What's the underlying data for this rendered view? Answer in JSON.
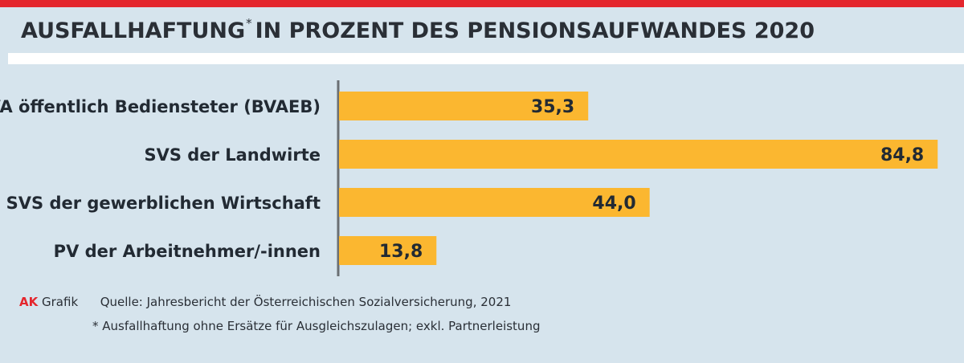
{
  "header": {
    "title_main": "AUSFALLHAFTUNG",
    "title_mark": "*",
    "title_rest": "IN PROZENT DES PENSIONSAUFWANDES 2020"
  },
  "colors": {
    "accent": "#e4262d",
    "bar": "#fbb730",
    "background": "#d6e4ed",
    "axis": "#6b6f73"
  },
  "chart_data": {
    "type": "bar",
    "orientation": "horizontal",
    "categories": [
      "VA öffentlich Bediensteter (BVAEB)",
      "SVS der Landwirte",
      "SVS der gewerblichen  Wirtschaft",
      "PV der Arbeitnehmer/-innen"
    ],
    "values": [
      35.3,
      84.8,
      44.0,
      13.8
    ],
    "value_labels": [
      "35,3",
      "84,8",
      "44,0",
      "13,8"
    ],
    "xlim": [
      0,
      85
    ],
    "grid": false,
    "legend": "none"
  },
  "footer": {
    "brand": "AK",
    "brand_suffix": "Grafik",
    "source": "Quelle: Jahresbericht der Österreichischen Sozialversicherung, 2021",
    "note": "* Ausfallhaftung ohne Ersätze für  Ausgleichszulagen; exkl. Partnerleistung"
  }
}
